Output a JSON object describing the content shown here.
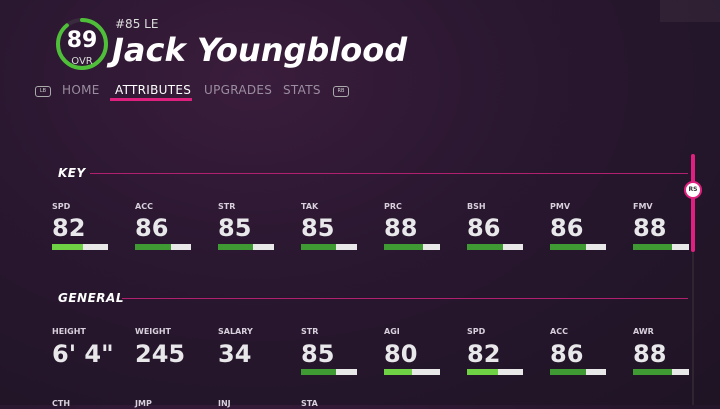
{
  "player": {
    "ovr": "89",
    "ovr_label": "OVR",
    "ovr_fraction": 0.89,
    "number_position": "#85 LE",
    "name": "Jack Youngblood"
  },
  "tabs": {
    "left_bumper": "LB",
    "right_bumper": "RB",
    "items": [
      {
        "label": "HOME"
      },
      {
        "label": "ATTRIBUTES"
      },
      {
        "label": "UPGRADES"
      },
      {
        "label": "STATS"
      }
    ],
    "active": "ATTRIBUTES"
  },
  "sections": {
    "key": {
      "title": "KEY",
      "stats": [
        {
          "label": "SPD",
          "value": "82",
          "fill": 0.82
        },
        {
          "label": "ACC",
          "value": "86",
          "fill": 0.86
        },
        {
          "label": "STR",
          "value": "85",
          "fill": 0.85
        },
        {
          "label": "TAK",
          "value": "85",
          "fill": 0.85
        },
        {
          "label": "PRC",
          "value": "88",
          "fill": 0.88
        },
        {
          "label": "BSH",
          "value": "86",
          "fill": 0.86
        },
        {
          "label": "PMV",
          "value": "86",
          "fill": 0.86
        },
        {
          "label": "FMV",
          "value": "88",
          "fill": 0.88
        }
      ]
    },
    "general": {
      "title": "GENERAL",
      "stats": [
        {
          "label": "HEIGHT",
          "value": "6' 4\""
        },
        {
          "label": "WEIGHT",
          "value": "245"
        },
        {
          "label": "SALARY",
          "value": "34"
        },
        {
          "label": "STR",
          "value": "85",
          "fill": 0.85
        },
        {
          "label": "AGI",
          "value": "80",
          "fill": 0.8
        },
        {
          "label": "SPD",
          "value": "82",
          "fill": 0.82
        },
        {
          "label": "ACC",
          "value": "86",
          "fill": 0.86
        },
        {
          "label": "AWR",
          "value": "88",
          "fill": 0.88
        }
      ],
      "next_row_labels": [
        "CTH",
        "JMP",
        "INJ",
        "STA"
      ]
    }
  },
  "scroll": {
    "button": "RS"
  },
  "colors": {
    "accent": "#e0207e",
    "bar_fill": "#3f9a34",
    "bar_fill_high": "#6fd244",
    "bar_track": "#e8e8e8"
  }
}
